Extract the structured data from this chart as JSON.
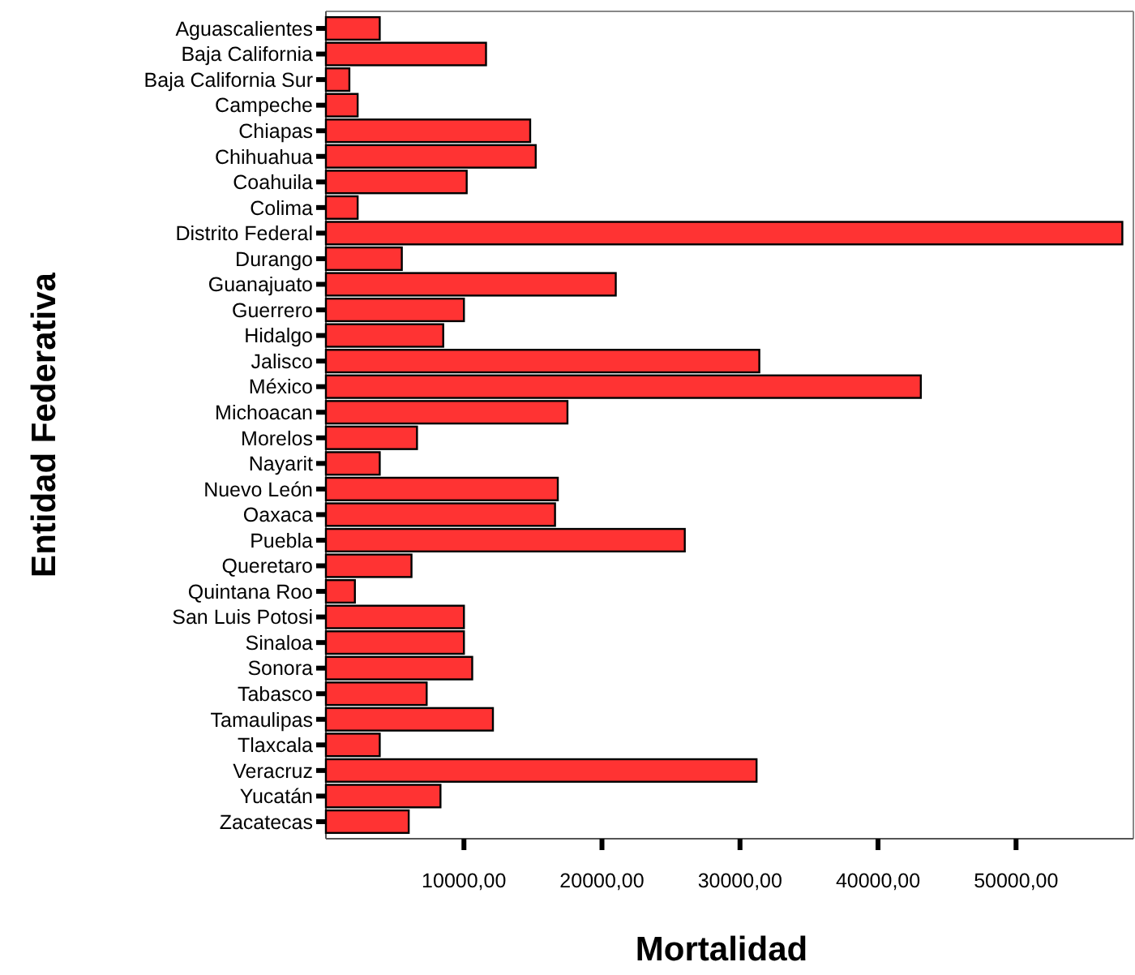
{
  "chart_data": {
    "type": "bar",
    "orientation": "horizontal",
    "xlabel": "Mortalidad",
    "ylabel": "Entidad Federativa",
    "categories": [
      "Aguascalientes",
      "Baja California",
      "Baja California Sur",
      "Campeche",
      "Chiapas",
      "Chihuahua",
      "Coahuila",
      "Colima",
      "Distrito Federal",
      "Durango",
      "Guanajuato",
      "Guerrero",
      "Hidalgo",
      "Jalisco",
      "México",
      "Michoacan",
      "Morelos",
      "Nayarit",
      "Nuevo León",
      "Oaxaca",
      "Puebla",
      "Queretaro",
      "Quintana Roo",
      "San Luis Potosi",
      "Sinaloa",
      "Sonora",
      "Tabasco",
      "Tamaulipas",
      "Tlaxcala",
      "Veracruz",
      "Yucatán",
      "Zacatecas"
    ],
    "values": [
      3900,
      11600,
      1700,
      2300,
      14800,
      15200,
      10200,
      2300,
      57700,
      5500,
      21000,
      10000,
      8500,
      31400,
      43100,
      17500,
      6600,
      3900,
      16800,
      16600,
      26000,
      6200,
      2100,
      10000,
      10000,
      10600,
      7300,
      12100,
      3900,
      31200,
      8300,
      6000
    ],
    "color": "#ff3333",
    "xlim": [
      0,
      58500
    ],
    "xticks": [
      {
        "value": 10000,
        "label": "10000,00"
      },
      {
        "value": 20000,
        "label": "20000,00"
      },
      {
        "value": 30000,
        "label": "30000,00"
      },
      {
        "value": 40000,
        "label": "40000,00"
      },
      {
        "value": 50000,
        "label": "50000,00"
      }
    ],
    "grid": false
  }
}
